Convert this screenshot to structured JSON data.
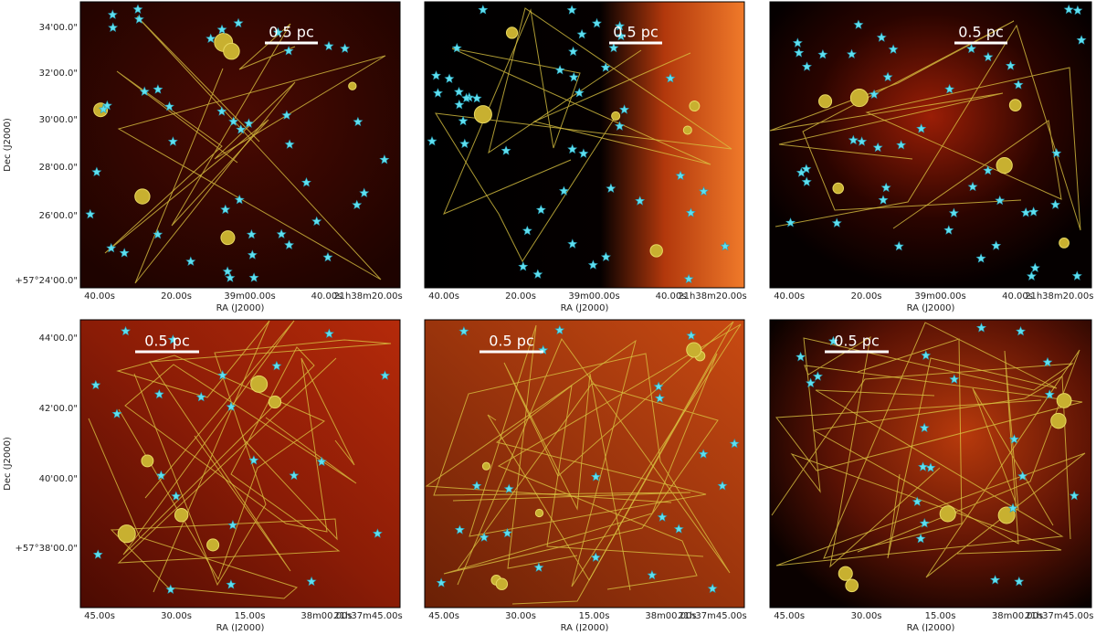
{
  "panels": [
    {
      "scale_label": "0.5 pc",
      "x_label": "RA (J2000)",
      "x_ticks": [
        "40.00s",
        "20.00s",
        "39m00.00s",
        "40.00s",
        "21h38m20.00s"
      ],
      "y_label": "Dec (J2000)",
      "y_ticks": [
        "34'00.0\"",
        "32'00.0\"",
        "30'00.0\"",
        "28'00.0\"",
        "26'00.0\"",
        "+57°24'00.0\""
      ]
    },
    {
      "scale_label": "0.5 pc",
      "x_label": "RA (J2000)",
      "x_ticks": [
        "40.00s",
        "20.00s",
        "39m00.00s",
        "40.00s",
        "21h38m20.00s"
      ]
    },
    {
      "scale_label": "0.5 pc",
      "x_label": "RA (J2000)",
      "x_ticks": [
        "40.00s",
        "20.00s",
        "39m00.00s",
        "40.00s",
        "21h38m20.00s"
      ]
    },
    {
      "scale_label": "0.5 pc",
      "x_label": "RA (J2000)",
      "x_ticks": [
        "45.00s",
        "30.00s",
        "15.00s",
        "38m00.00s",
        "21h37m45.00s"
      ],
      "y_label": "Dec (J2000)",
      "y_ticks": [
        "44'00.0\"",
        "42'00.0\"",
        "40'00.0\"",
        "+57°38'00.0\""
      ]
    },
    {
      "scale_label": "0.5 pc",
      "x_label": "RA (J2000)",
      "x_ticks": [
        "45.00s",
        "30.00s",
        "15.00s",
        "38m00.00s",
        "21h37m45.00s"
      ]
    },
    {
      "scale_label": "0.5 pc",
      "x_label": "RA (J2000)",
      "x_ticks": [
        "45.00s",
        "30.00s",
        "15.00s",
        "38m00.00s",
        "21h37m45.00s"
      ]
    }
  ]
}
